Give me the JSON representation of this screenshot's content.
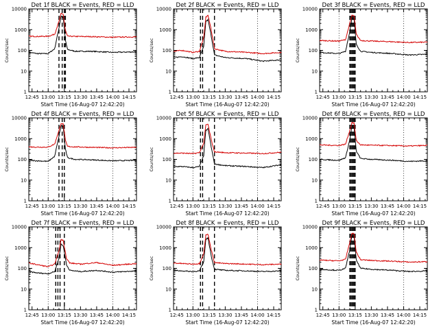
{
  "chart_data": [
    {
      "type": "line",
      "title": "Det 1f BLACK = Events, RED = LLD",
      "xlabel": "Start Time (16-Aug-07 12:42:20)",
      "ylabel": "Counts/sec",
      "yscale": "log",
      "ylim": [
        1,
        10000
      ],
      "xlim": [
        "12:42",
        "14:22"
      ],
      "x_ticks": [
        "12:45",
        "13:00",
        "13:15",
        "13:30",
        "13:45",
        "14:00",
        "14:15"
      ],
      "y_ticks": [
        "1",
        "10",
        "100",
        "1000",
        "10000"
      ],
      "grid": false,
      "flare_dotted_times": [
        "13:00",
        "14:00"
      ],
      "flare_dashed_times": [
        "13:10",
        "13:13",
        "13:15",
        "13:16"
      ],
      "series": [
        {
          "name": "Events",
          "color": "#000000",
          "x": [
            "12:42",
            "12:50",
            "13:00",
            "13:06",
            "13:10",
            "13:12",
            "13:14",
            "13:16",
            "13:18",
            "13:25",
            "13:40",
            "14:00",
            "14:22"
          ],
          "y": [
            80,
            70,
            70,
            120,
            1200,
            4500,
            4000,
            300,
            110,
            90,
            90,
            80,
            85
          ]
        },
        {
          "name": "LLD",
          "color": "#d40000",
          "x": [
            "12:42",
            "12:50",
            "13:00",
            "13:06",
            "13:10",
            "13:12",
            "13:14",
            "13:16",
            "13:18",
            "13:25",
            "13:40",
            "14:00",
            "14:22"
          ],
          "y": [
            480,
            470,
            480,
            600,
            2500,
            6000,
            5500,
            900,
            480,
            470,
            460,
            430,
            450
          ]
        }
      ]
    },
    {
      "type": "line",
      "title": "Det 2f BLACK = Events, RED = LLD",
      "xlabel": "Start Time (16-Aug-07 12:42:20)",
      "ylabel": "Counts/sec",
      "yscale": "log",
      "ylim": [
        1,
        10000
      ],
      "xlim": [
        "12:42",
        "14:22"
      ],
      "x_ticks": [
        "12:45",
        "13:00",
        "13:15",
        "13:30",
        "13:45",
        "14:00",
        "14:15"
      ],
      "y_ticks": [
        "1",
        "10",
        "100",
        "1000",
        "10000"
      ],
      "grid": false,
      "flare_dotted_times": [
        "13:00",
        "14:00"
      ],
      "flare_dashed_times": [
        "13:07",
        "13:09",
        "13:20"
      ],
      "series": [
        {
          "name": "Events",
          "color": "#000000",
          "x": [
            "12:42",
            "12:50",
            "13:00",
            "13:06",
            "13:10",
            "13:12",
            "13:14",
            "13:17",
            "13:20",
            "13:30",
            "13:50",
            "14:05",
            "14:22"
          ],
          "y": [
            45,
            50,
            40,
            45,
            150,
            2500,
            3000,
            500,
            60,
            45,
            40,
            30,
            35
          ]
        },
        {
          "name": "LLD",
          "color": "#d40000",
          "x": [
            "12:42",
            "12:50",
            "13:00",
            "13:06",
            "13:10",
            "13:12",
            "13:14",
            "13:17",
            "13:20",
            "13:30",
            "13:50",
            "14:05",
            "14:22"
          ],
          "y": [
            90,
            100,
            80,
            90,
            400,
            4000,
            5000,
            1000,
            120,
            90,
            80,
            70,
            80
          ]
        }
      ]
    },
    {
      "type": "line",
      "title": "Det 3f BLACK = Events, RED = LLD",
      "xlabel": "Start Time (16-Aug-07 12:42:20)",
      "ylabel": "Counts/sec",
      "yscale": "log",
      "ylim": [
        1,
        10000
      ],
      "xlim": [
        "12:42",
        "14:22"
      ],
      "x_ticks": [
        "12:45",
        "13:00",
        "13:15",
        "13:30",
        "13:45",
        "14:00",
        "14:15"
      ],
      "y_ticks": [
        "1",
        "10",
        "100",
        "1000",
        "10000"
      ],
      "grid": false,
      "flare_dotted_times": [
        "13:00",
        "14:00"
      ],
      "flare_dashed_times": [
        "13:10",
        "13:11",
        "13:12",
        "13:13",
        "13:14",
        "13:15"
      ],
      "series": [
        {
          "name": "Events",
          "color": "#000000",
          "x": [
            "12:42",
            "12:50",
            "13:00",
            "13:06",
            "13:10",
            "13:12",
            "13:14",
            "13:16",
            "13:20",
            "13:30",
            "13:50",
            "14:05",
            "14:22"
          ],
          "y": [
            80,
            75,
            70,
            90,
            800,
            3500,
            3000,
            200,
            90,
            80,
            70,
            60,
            65
          ]
        },
        {
          "name": "LLD",
          "color": "#d40000",
          "x": [
            "12:42",
            "12:50",
            "13:00",
            "13:06",
            "13:10",
            "13:12",
            "13:14",
            "13:16",
            "13:20",
            "13:30",
            "13:50",
            "14:05",
            "14:22"
          ],
          "y": [
            300,
            290,
            280,
            330,
            2000,
            5000,
            4500,
            600,
            300,
            280,
            260,
            240,
            250
          ]
        }
      ]
    },
    {
      "type": "line",
      "title": "Det 4f BLACK = Events, RED = LLD",
      "xlabel": "Start Time (16-Aug-07 12:42:20)",
      "ylabel": "Counts/sec",
      "yscale": "log",
      "ylim": [
        1,
        10000
      ],
      "xlim": [
        "12:42",
        "14:22"
      ],
      "x_ticks": [
        "12:45",
        "13:00",
        "13:15",
        "13:30",
        "13:45",
        "14:00",
        "14:15"
      ],
      "y_ticks": [
        "1",
        "10",
        "100",
        "1000",
        "10000"
      ],
      "grid": false,
      "flare_dotted_times": [
        "13:00",
        "14:00"
      ],
      "flare_dashed_times": [
        "13:10",
        "13:13",
        "13:15"
      ],
      "series": [
        {
          "name": "Events",
          "color": "#000000",
          "x": [
            "12:42",
            "12:50",
            "13:00",
            "13:06",
            "13:10",
            "13:12",
            "13:14",
            "13:16",
            "13:18",
            "13:25",
            "13:40",
            "14:00",
            "14:22"
          ],
          "y": [
            90,
            85,
            80,
            140,
            1300,
            4200,
            3800,
            300,
            120,
            100,
            95,
            85,
            90
          ]
        },
        {
          "name": "LLD",
          "color": "#d40000",
          "x": [
            "12:42",
            "12:50",
            "13:00",
            "13:06",
            "13:10",
            "13:12",
            "13:14",
            "13:16",
            "13:18",
            "13:25",
            "13:40",
            "14:00",
            "14:22"
          ],
          "y": [
            400,
            390,
            390,
            550,
            2500,
            5500,
            5000,
            800,
            420,
            400,
            380,
            360,
            380
          ]
        }
      ]
    },
    {
      "type": "line",
      "title": "Det 5f BLACK = Events, RED = LLD",
      "xlabel": "Start Time (16-Aug-07 12:42:20)",
      "ylabel": "Counts/sec",
      "yscale": "log",
      "ylim": [
        1,
        10000
      ],
      "xlim": [
        "12:42",
        "14:22"
      ],
      "x_ticks": [
        "12:45",
        "13:00",
        "13:15",
        "13:30",
        "13:45",
        "14:00",
        "14:15"
      ],
      "y_ticks": [
        "1",
        "10",
        "100",
        "1000",
        "10000"
      ],
      "grid": false,
      "flare_dotted_times": [
        "13:00",
        "14:00"
      ],
      "flare_dashed_times": [
        "13:07",
        "13:09",
        "13:20"
      ],
      "series": [
        {
          "name": "Events",
          "color": "#000000",
          "x": [
            "12:42",
            "12:50",
            "13:00",
            "13:06",
            "13:10",
            "13:12",
            "13:14",
            "13:17",
            "13:20",
            "13:30",
            "13:50",
            "14:05",
            "14:22"
          ],
          "y": [
            45,
            45,
            40,
            45,
            150,
            2500,
            3000,
            400,
            60,
            50,
            45,
            40,
            55
          ]
        },
        {
          "name": "LLD",
          "color": "#d40000",
          "x": [
            "12:42",
            "12:50",
            "13:00",
            "13:06",
            "13:10",
            "13:12",
            "13:14",
            "13:17",
            "13:20",
            "13:30",
            "13:50",
            "14:05",
            "14:22"
          ],
          "y": [
            200,
            200,
            190,
            210,
            600,
            4500,
            5000,
            900,
            230,
            210,
            200,
            190,
            220
          ]
        }
      ]
    },
    {
      "type": "line",
      "title": "Det 6f BLACK = Events, RED = LLD",
      "xlabel": "Start Time (16-Aug-07 12:42:20)",
      "ylabel": "Counts/sec",
      "yscale": "log",
      "ylim": [
        1,
        10000
      ],
      "xlim": [
        "12:42",
        "14:22"
      ],
      "x_ticks": [
        "12:45",
        "13:00",
        "13:15",
        "13:30",
        "13:45",
        "14:00",
        "14:15"
      ],
      "y_ticks": [
        "1",
        "10",
        "100",
        "1000",
        "10000"
      ],
      "grid": false,
      "flare_dotted_times": [
        "13:00",
        "14:00"
      ],
      "flare_dashed_times": [
        "13:10",
        "13:11",
        "13:12",
        "13:13",
        "13:14",
        "13:15"
      ],
      "series": [
        {
          "name": "Events",
          "color": "#000000",
          "x": [
            "12:42",
            "12:50",
            "13:00",
            "13:06",
            "13:10",
            "13:12",
            "13:14",
            "13:16",
            "13:20",
            "13:30",
            "13:50",
            "14:05",
            "14:22"
          ],
          "y": [
            100,
            95,
            90,
            120,
            900,
            3800,
            3300,
            250,
            110,
            100,
            90,
            80,
            85
          ]
        },
        {
          "name": "LLD",
          "color": "#d40000",
          "x": [
            "12:42",
            "12:50",
            "13:00",
            "13:06",
            "13:10",
            "13:12",
            "13:14",
            "13:16",
            "13:20",
            "13:30",
            "13:50",
            "14:05",
            "14:22"
          ],
          "y": [
            500,
            480,
            470,
            540,
            2500,
            6000,
            5500,
            800,
            500,
            480,
            460,
            440,
            470
          ]
        }
      ]
    },
    {
      "type": "line",
      "title": "Det 7f BLACK = Events, RED = LLD",
      "xlabel": "Start Time (16-Aug-07 12:42:20)",
      "ylabel": "Counts/sec",
      "yscale": "log",
      "ylim": [
        1,
        10000
      ],
      "xlim": [
        "12:42",
        "14:22"
      ],
      "x_ticks": [
        "12:45",
        "13:00",
        "13:15",
        "13:30",
        "13:45",
        "14:00",
        "14:15"
      ],
      "y_ticks": [
        "1",
        "10",
        "100",
        "1000",
        "10000"
      ],
      "grid": false,
      "flare_dotted_times": [
        "13:00",
        "14:00"
      ],
      "flare_dashed_times": [
        "13:07",
        "13:09",
        "13:11",
        "13:15"
      ],
      "series": [
        {
          "name": "Events",
          "color": "#000000",
          "x": [
            "12:42",
            "12:50",
            "13:00",
            "13:06",
            "13:10",
            "13:12",
            "13:14",
            "13:17",
            "13:20",
            "13:30",
            "13:45",
            "14:00",
            "14:22"
          ],
          "y": [
            70,
            60,
            55,
            70,
            300,
            1500,
            1200,
            150,
            80,
            70,
            80,
            65,
            75
          ]
        },
        {
          "name": "LLD",
          "color": "#d40000",
          "x": [
            "12:42",
            "12:50",
            "13:00",
            "13:06",
            "13:10",
            "13:12",
            "13:14",
            "13:17",
            "13:20",
            "13:30",
            "13:45",
            "14:00",
            "14:22"
          ],
          "y": [
            180,
            150,
            120,
            160,
            700,
            2500,
            2200,
            300,
            180,
            160,
            190,
            140,
            170
          ]
        }
      ]
    },
    {
      "type": "line",
      "title": "Det 8f BLACK = Events, RED = LLD",
      "xlabel": "Start Time (16-Aug-07 12:42:20)",
      "ylabel": "Counts/sec",
      "yscale": "log",
      "ylim": [
        1,
        10000
      ],
      "xlim": [
        "12:42",
        "14:22"
      ],
      "x_ticks": [
        "12:45",
        "13:00",
        "13:15",
        "13:30",
        "13:45",
        "14:00",
        "14:15"
      ],
      "y_ticks": [
        "1",
        "10",
        "100",
        "1000",
        "10000"
      ],
      "grid": false,
      "flare_dotted_times": [
        "13:00",
        "14:00"
      ],
      "flare_dashed_times": [
        "13:07",
        "13:09",
        "13:20"
      ],
      "series": [
        {
          "name": "Events",
          "color": "#000000",
          "x": [
            "12:42",
            "12:50",
            "13:00",
            "13:06",
            "13:10",
            "13:12",
            "13:14",
            "13:17",
            "13:20",
            "13:30",
            "13:50",
            "14:05",
            "14:22"
          ],
          "y": [
            80,
            75,
            70,
            75,
            200,
            2500,
            3000,
            400,
            90,
            80,
            75,
            70,
            75
          ]
        },
        {
          "name": "LLD",
          "color": "#d40000",
          "x": [
            "12:42",
            "12:50",
            "13:00",
            "13:06",
            "13:10",
            "13:12",
            "13:14",
            "13:17",
            "13:20",
            "13:30",
            "13:50",
            "14:05",
            "14:22"
          ],
          "y": [
            180,
            170,
            160,
            170,
            500,
            4000,
            4500,
            800,
            190,
            170,
            160,
            150,
            160
          ]
        }
      ]
    },
    {
      "type": "line",
      "title": "Det 9f BLACK = Events, RED = LLD",
      "xlabel": "Start Time (16-Aug-07 12:42:20)",
      "ylabel": "Counts/sec",
      "yscale": "log",
      "ylim": [
        1,
        10000
      ],
      "xlim": [
        "12:42",
        "14:22"
      ],
      "x_ticks": [
        "12:45",
        "13:00",
        "13:15",
        "13:30",
        "13:45",
        "14:00",
        "14:15"
      ],
      "y_ticks": [
        "1",
        "10",
        "100",
        "1000",
        "10000"
      ],
      "grid": false,
      "flare_dotted_times": [
        "13:00",
        "14:00"
      ],
      "flare_dashed_times": [
        "13:10",
        "13:11",
        "13:12",
        "13:13",
        "13:14",
        "13:15"
      ],
      "series": [
        {
          "name": "Events",
          "color": "#000000",
          "x": [
            "12:42",
            "12:50",
            "13:00",
            "13:06",
            "13:10",
            "13:12",
            "13:14",
            "13:16",
            "13:20",
            "13:30",
            "13:50",
            "14:05",
            "14:22"
          ],
          "y": [
            90,
            85,
            80,
            100,
            800,
            3600,
            3200,
            250,
            100,
            90,
            80,
            70,
            75
          ]
        },
        {
          "name": "LLD",
          "color": "#d40000",
          "x": [
            "12:42",
            "12:50",
            "13:00",
            "13:06",
            "13:10",
            "13:12",
            "13:14",
            "13:16",
            "13:20",
            "13:30",
            "13:50",
            "14:05",
            "14:22"
          ],
          "y": [
            250,
            240,
            230,
            270,
            1800,
            5000,
            4500,
            600,
            260,
            240,
            220,
            200,
            210
          ]
        }
      ]
    }
  ]
}
